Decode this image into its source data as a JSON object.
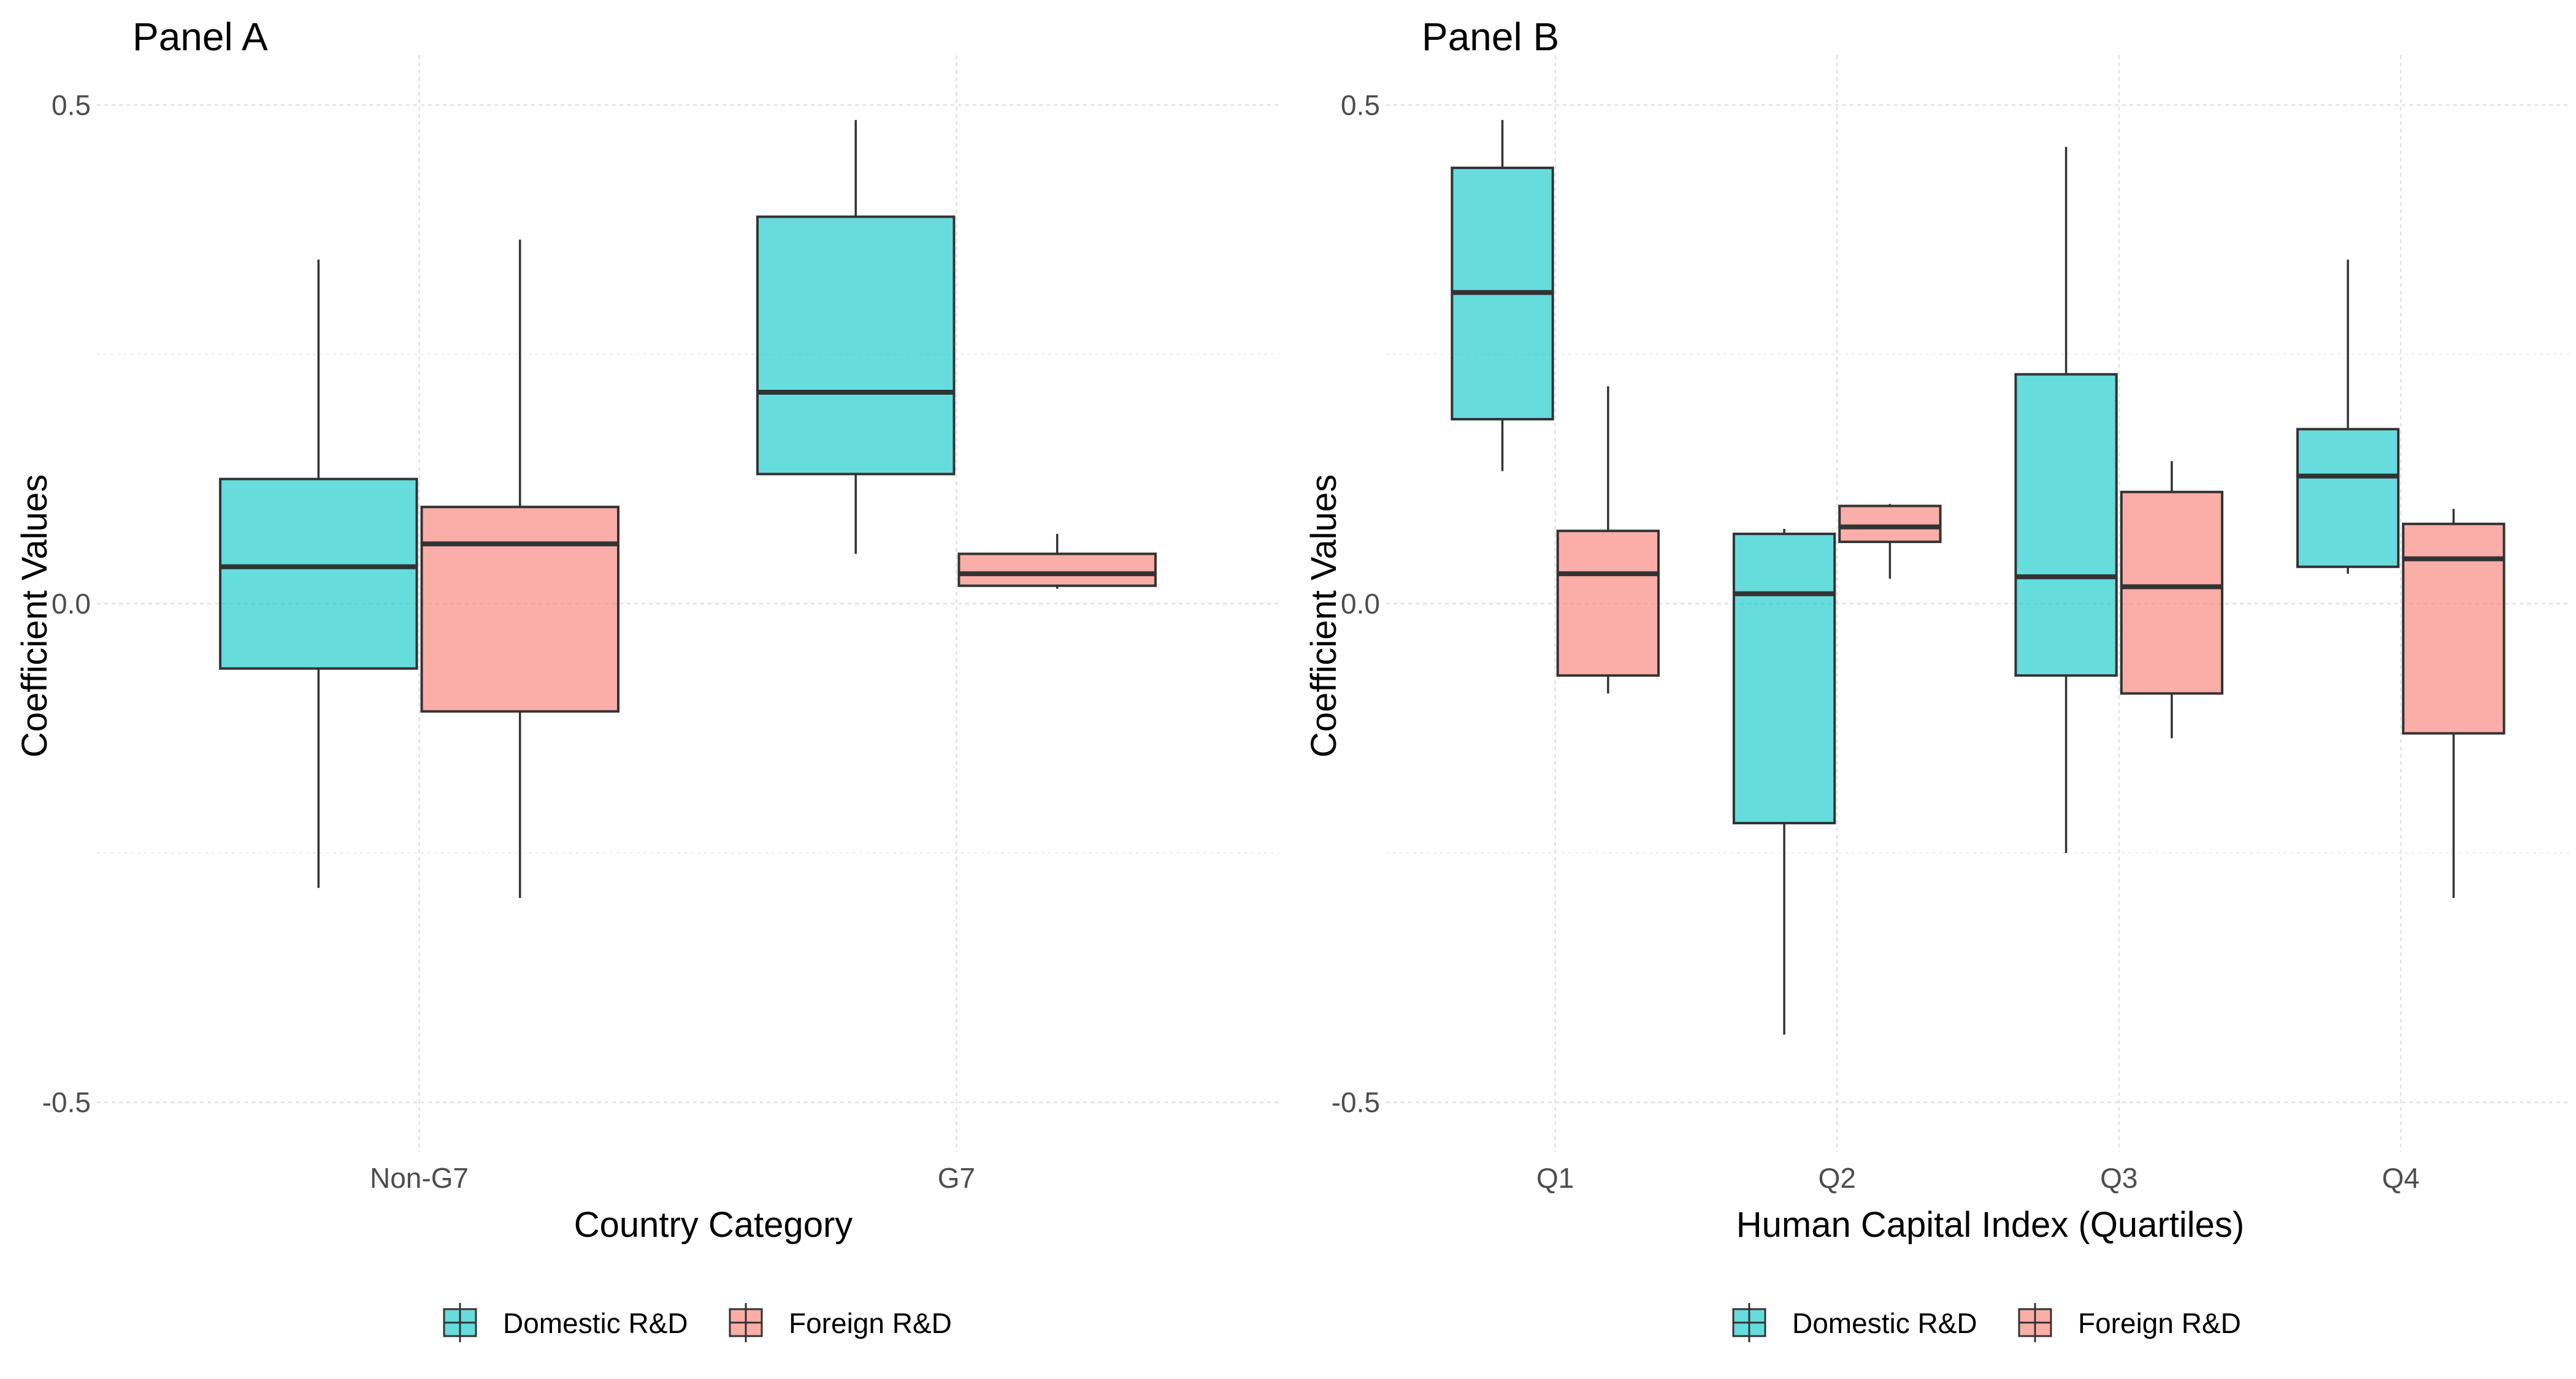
{
  "legend_labels": [
    "Domestic R&D",
    "Foreign R&D"
  ],
  "chart_data": [
    {
      "type": "boxplot",
      "title": "Panel A",
      "xlabel": "Country Category",
      "ylabel": "Coefficient Values",
      "categories": [
        "Non-G7",
        "G7"
      ],
      "ylim": [
        -0.55,
        0.55
      ],
      "yticks": [
        -0.5,
        0.0,
        0.5
      ],
      "ytick_labels": [
        "-0.5",
        "0.0",
        "0.5"
      ],
      "grid": true,
      "legend_position": "bottom",
      "series": [
        {
          "name": "Domestic R&D",
          "color": "#00C5C7",
          "boxes": [
            {
              "category": "Non-G7",
              "whisker_low": -0.285,
              "q1": -0.065,
              "median": 0.037,
              "q3": 0.125,
              "whisker_high": 0.345
            },
            {
              "category": "G7",
              "whisker_low": 0.05,
              "q1": 0.13,
              "median": 0.212,
              "q3": 0.388,
              "whisker_high": 0.485
            }
          ]
        },
        {
          "name": "Foreign R&D",
          "color": "#F8766D",
          "boxes": [
            {
              "category": "Non-G7",
              "whisker_low": -0.295,
              "q1": -0.108,
              "median": 0.06,
              "q3": 0.097,
              "whisker_high": 0.365
            },
            {
              "category": "G7",
              "whisker_low": 0.015,
              "q1": 0.018,
              "median": 0.03,
              "q3": 0.05,
              "whisker_high": 0.07
            }
          ]
        }
      ]
    },
    {
      "type": "boxplot",
      "title": "Panel B",
      "xlabel": "Human Capital Index (Quartiles)",
      "ylabel": "Coefficient Values",
      "categories": [
        "Q1",
        "Q2",
        "Q3",
        "Q4"
      ],
      "ylim": [
        -0.55,
        0.55
      ],
      "yticks": [
        -0.5,
        0.0,
        0.5
      ],
      "ytick_labels": [
        "-0.5",
        "0.0",
        "0.5"
      ],
      "grid": true,
      "legend_position": "bottom",
      "series": [
        {
          "name": "Domestic R&D",
          "color": "#00C5C7",
          "boxes": [
            {
              "category": "Q1",
              "whisker_low": 0.133,
              "q1": 0.185,
              "median": 0.312,
              "q3": 0.437,
              "whisker_high": 0.485
            },
            {
              "category": "Q2",
              "whisker_low": -0.432,
              "q1": -0.22,
              "median": 0.01,
              "q3": 0.07,
              "whisker_high": 0.075
            },
            {
              "category": "Q3",
              "whisker_low": -0.25,
              "q1": -0.072,
              "median": 0.027,
              "q3": 0.23,
              "whisker_high": 0.458
            },
            {
              "category": "Q4",
              "whisker_low": 0.03,
              "q1": 0.037,
              "median": 0.128,
              "q3": 0.175,
              "whisker_high": 0.345
            }
          ]
        },
        {
          "name": "Foreign R&D",
          "color": "#F8766D",
          "boxes": [
            {
              "category": "Q1",
              "whisker_low": -0.09,
              "q1": -0.072,
              "median": 0.03,
              "q3": 0.073,
              "whisker_high": 0.218
            },
            {
              "category": "Q2",
              "whisker_low": 0.025,
              "q1": 0.062,
              "median": 0.077,
              "q3": 0.098,
              "whisker_high": 0.1
            },
            {
              "category": "Q3",
              "whisker_low": -0.135,
              "q1": -0.09,
              "median": 0.017,
              "q3": 0.112,
              "whisker_high": 0.143
            },
            {
              "category": "Q4",
              "whisker_low": -0.295,
              "q1": -0.13,
              "median": 0.045,
              "q3": 0.08,
              "whisker_high": 0.095
            }
          ]
        }
      ]
    }
  ]
}
